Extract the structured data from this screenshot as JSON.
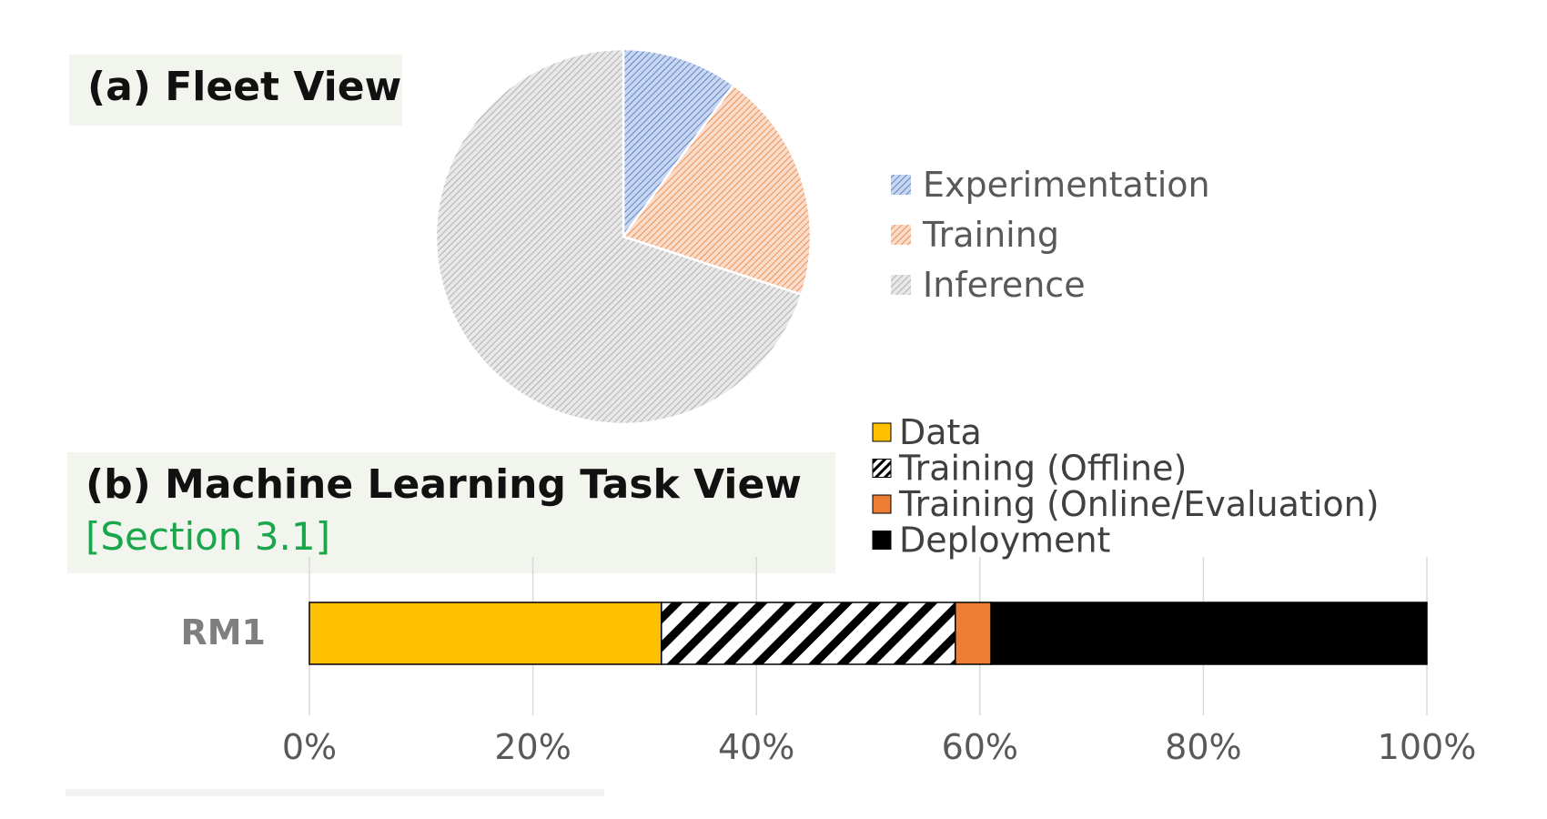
{
  "panel_a": {
    "title": "(a) Fleet View"
  },
  "panel_b": {
    "title": "(b) Machine Learning Task View",
    "section_ref": "[Section 3.1]"
  },
  "chart_data": [
    {
      "type": "pie",
      "title": "(a) Fleet View",
      "slices": [
        {
          "label": "Experimentation",
          "value": 10,
          "color": "#4472c4"
        },
        {
          "label": "Training",
          "value": 20,
          "color": "#ed7d31"
        },
        {
          "label": "Inference",
          "value": 70,
          "color": "#a5a5a5"
        }
      ],
      "legend_position": "right"
    },
    {
      "type": "bar",
      "orientation": "horizontal",
      "stacked": true,
      "title": "(b) Machine Learning Task View",
      "categories": [
        "RM1"
      ],
      "series": [
        {
          "name": "Data",
          "values": [
            31.5
          ],
          "color": "#ffc000",
          "pattern": "solid"
        },
        {
          "name": "Training (Offline)",
          "values": [
            26.3
          ],
          "color": "#000000",
          "pattern": "diagonal-hatch"
        },
        {
          "name": "Training (Online/Evaluation)",
          "values": [
            3.2
          ],
          "color": "#ed7d31",
          "pattern": "solid"
        },
        {
          "name": "Deployment",
          "values": [
            39.0
          ],
          "color": "#000000",
          "pattern": "solid"
        }
      ],
      "xlim": [
        0,
        100
      ],
      "x_ticks": [
        "0%",
        "20%",
        "40%",
        "60%",
        "80%",
        "100%"
      ],
      "grid": "vertical",
      "legend_position": "top-right"
    }
  ]
}
